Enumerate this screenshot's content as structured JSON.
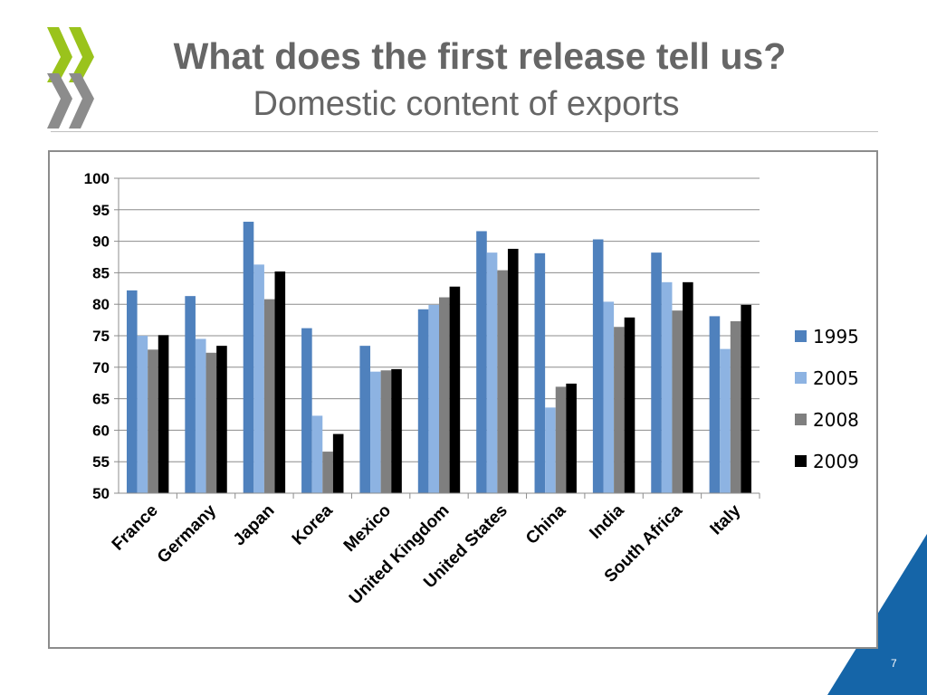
{
  "header": {
    "title": "What does the first release tell us?",
    "subtitle": "Domestic content of exports"
  },
  "footer": {
    "page_number": "7"
  },
  "colors": {
    "logo_green": "#9ac31c",
    "logo_grey": "#8c8c8c",
    "corner_blue": "#1565a8",
    "text_grey": "#666666"
  },
  "chart_data": {
    "type": "bar",
    "title": "",
    "xlabel": "",
    "ylabel": "",
    "ylim": [
      50,
      100
    ],
    "yticks": [
      50,
      55,
      60,
      65,
      70,
      75,
      80,
      85,
      90,
      95,
      100
    ],
    "grid": true,
    "legend_position": "right",
    "categories": [
      "France",
      "Germany",
      "Japan",
      "Korea",
      "Mexico",
      "United Kingdom",
      "United States",
      "China",
      "India",
      "South Africa",
      "Italy"
    ],
    "series": [
      {
        "name": "1995",
        "color": "#4f81bd",
        "values": [
          82.2,
          81.3,
          93.1,
          76.2,
          73.4,
          79.2,
          91.6,
          88.1,
          90.3,
          88.2,
          78.1
        ]
      },
      {
        "name": "2005",
        "color": "#8db3e2",
        "values": [
          75.0,
          74.5,
          86.3,
          62.3,
          69.3,
          79.9,
          88.2,
          63.6,
          80.4,
          83.5,
          72.9
        ]
      },
      {
        "name": "2008",
        "color": "#7f7f7f",
        "values": [
          72.8,
          72.3,
          80.8,
          56.6,
          69.5,
          81.1,
          85.4,
          66.9,
          76.4,
          79.0,
          77.3
        ]
      },
      {
        "name": "2009",
        "color": "#000000",
        "values": [
          75.1,
          73.4,
          85.2,
          59.4,
          69.7,
          82.8,
          88.8,
          67.4,
          77.9,
          83.5,
          79.9
        ]
      }
    ]
  }
}
